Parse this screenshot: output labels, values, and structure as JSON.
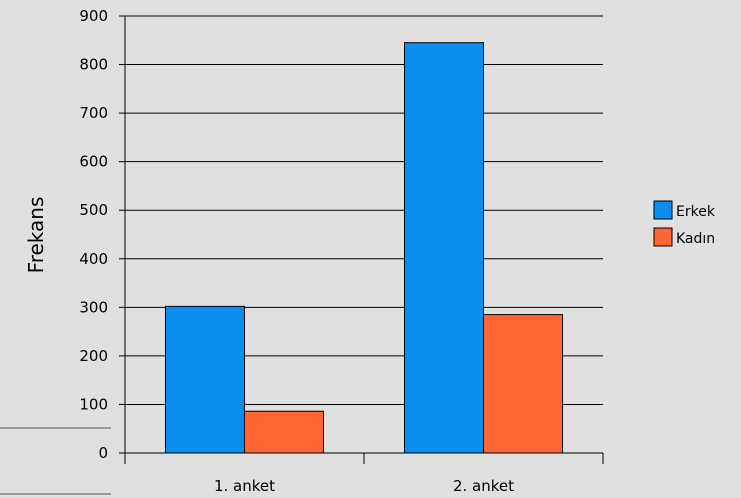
{
  "chart_data": {
    "type": "bar",
    "title": "",
    "xlabel": "",
    "ylabel": "Frekans",
    "categories": [
      "1. anket",
      "2. anket"
    ],
    "series": [
      {
        "name": "Erkek",
        "values": [
          302,
          845
        ],
        "color": "#0a8ef0"
      },
      {
        "name": "Kadın",
        "values": [
          86,
          285
        ],
        "color": "#ff6633"
      }
    ],
    "ylim": [
      0,
      900
    ],
    "yticks": [
      "0",
      "100",
      "200",
      "300",
      "400",
      "500",
      "600",
      "700",
      "800",
      "900"
    ],
    "grid": true,
    "legend_position": "right"
  }
}
